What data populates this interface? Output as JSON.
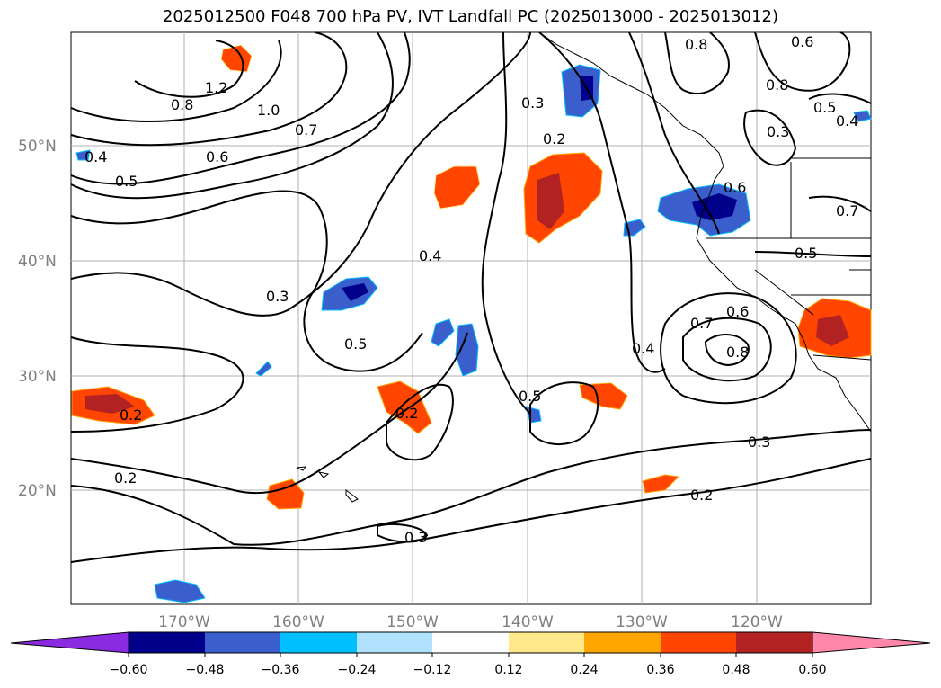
{
  "title": "2025012500 F048 700 hPa PV, IVT Landfall PC (2025013000 - 2025013012)",
  "map": {
    "lat_labels": [
      "50°N",
      "40°N",
      "30°N",
      "20°N"
    ],
    "lon_labels": [
      "170°W",
      "160°W",
      "150°W",
      "140°W",
      "130°W",
      "120°W"
    ],
    "contour_labels": [
      "1.2",
      "1.0",
      "0.8",
      "0.7",
      "0.6",
      "0.5",
      "0.4",
      "0.3",
      "0.4",
      "0.5",
      "0.2",
      "0.2",
      "0.2",
      "0.3",
      "0.5",
      "0.4",
      "0.3",
      "0.2",
      "0.3",
      "0.2",
      "0.8",
      "0.6",
      "0.8",
      "0.5",
      "0.4",
      "0.6",
      "0.7",
      "0.5",
      "0.7",
      "0.6",
      "0.8",
      "0.3",
      "0.2",
      "0.4"
    ]
  },
  "colorbar": {
    "ticks": [
      "−0.60",
      "−0.48",
      "−0.36",
      "−0.24",
      "−0.12",
      "0.12",
      "0.24",
      "0.36",
      "0.48",
      "0.60"
    ],
    "colors": [
      "#8a2be2",
      "#00008b",
      "#3a5fcd",
      "#00bfff",
      "#b0e2ff",
      "#ffffff",
      "#ffe88a",
      "#ffa500",
      "#ff4500",
      "#b22222",
      "#ff88aa"
    ]
  }
}
